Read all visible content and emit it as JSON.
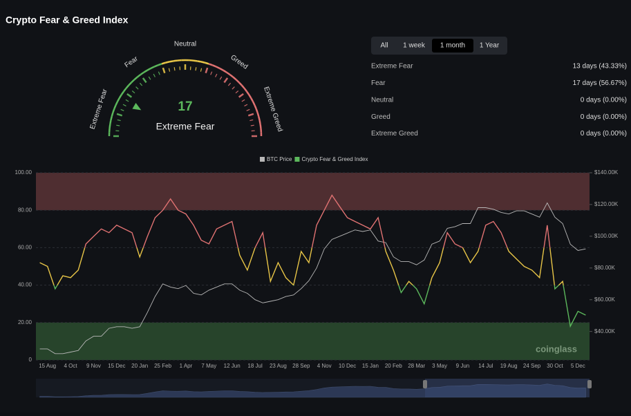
{
  "title": "Crypto Fear & Greed Index",
  "gauge": {
    "value": 17,
    "label": "Extreme Fear",
    "zones": [
      "Extreme Fear",
      "Fear",
      "Neutral",
      "Greed",
      "Extreme Greed"
    ]
  },
  "tabs": [
    "All",
    "1 week",
    "1 month",
    "1 Year"
  ],
  "active_tab": 2,
  "stats": [
    [
      "Extreme Fear",
      "13 days (43.33%)"
    ],
    [
      "Fear",
      "17 days (56.67%)"
    ],
    [
      "Neutral",
      "0 days (0.00%)"
    ],
    [
      "Greed",
      "0 days (0.00%)"
    ],
    [
      "Extreme Greed",
      "0 days (0.00%)"
    ]
  ],
  "watermark": "coinglass",
  "chart_data": {
    "type": "line",
    "categories": [
      null,
      "15 Aug",
      null,
      null,
      "4 Oct",
      null,
      null,
      "9 Nov",
      null,
      null,
      "15 Dec",
      null,
      null,
      "20 Jan",
      null,
      null,
      "25 Feb",
      null,
      null,
      "1 Apr",
      null,
      null,
      "7 May",
      null,
      null,
      "12 Jun",
      null,
      null,
      "18 Jul",
      null,
      null,
      "23 Aug",
      null,
      null,
      "28 Sep",
      null,
      null,
      "4 Nov",
      null,
      null,
      "10 Dec",
      null,
      null,
      "15 Jan",
      null,
      null,
      "20 Feb",
      null,
      null,
      "28 Mar",
      null,
      null,
      "3 May",
      null,
      null,
      "9 Jun",
      null,
      null,
      "14 Jul",
      null,
      null,
      "19 Aug",
      null,
      null,
      "24 Sep",
      null,
      null,
      "30 Oct",
      null,
      null,
      "5 Dec",
      null
    ],
    "series": [
      {
        "name": "BTC Price",
        "color": "#b8b8b8",
        "axis": "y2",
        "values": [
          29000,
          29000,
          26000,
          26000,
          27000,
          28000,
          34000,
          37000,
          37000,
          42000,
          43000,
          43000,
          42000,
          43000,
          52000,
          62000,
          70000,
          68000,
          67000,
          69000,
          64000,
          63000,
          66000,
          68000,
          70000,
          70000,
          66000,
          64000,
          60000,
          58000,
          59000,
          60000,
          62000,
          63000,
          67000,
          72000,
          80000,
          92000,
          98000,
          100000,
          102000,
          104000,
          103000,
          104000,
          97000,
          96000,
          87000,
          84000,
          84000,
          82000,
          85000,
          95000,
          97000,
          105000,
          106000,
          108000,
          108000,
          118000,
          118000,
          117000,
          115000,
          114000,
          116000,
          116000,
          114000,
          112000,
          121000,
          112000,
          108000,
          95000,
          91000,
          92000
        ]
      },
      {
        "name": "Crypto Fear & Greed Index",
        "color": "#5cb85c",
        "values": [
          52,
          50,
          38,
          45,
          44,
          48,
          62,
          66,
          70,
          68,
          72,
          70,
          68,
          55,
          66,
          76,
          80,
          86,
          80,
          78,
          72,
          64,
          62,
          70,
          72,
          74,
          56,
          48,
          60,
          68,
          42,
          52,
          44,
          40,
          58,
          52,
          72,
          80,
          88,
          82,
          76,
          74,
          72,
          70,
          76,
          58,
          48,
          36,
          42,
          38,
          30,
          44,
          52,
          68,
          62,
          60,
          52,
          58,
          72,
          74,
          68,
          58,
          54,
          50,
          48,
          44,
          72,
          38,
          42,
          18,
          26,
          24
        ],
        "zones": [
          {
            "from": 0,
            "to": 40,
            "color": "#5cb85c"
          },
          {
            "from": 40,
            "to": 60,
            "color": "#e8c547"
          },
          {
            "from": 60,
            "to": 100,
            "color": "#e07272"
          }
        ]
      }
    ],
    "ylim": [
      0,
      100
    ],
    "yticks": [
      0,
      {
        "value": 20,
        "label": "20.00"
      },
      {
        "value": 40,
        "label": "40.00"
      },
      {
        "value": 60,
        "label": "60.00"
      },
      {
        "value": 80,
        "label": "80.00"
      },
      {
        "value": 100,
        "label": "100.00"
      }
    ],
    "y2lim": [
      22000,
      140000
    ],
    "y2ticks": [
      {
        "value": 40000,
        "label": "$40.00K"
      },
      {
        "value": 60000,
        "label": "$60.00K"
      },
      {
        "value": 80000,
        "label": "$80.00K"
      },
      {
        "value": 100000,
        "label": "$100.00K"
      },
      {
        "value": 120000,
        "label": "$120.00K"
      },
      {
        "value": 140000,
        "label": "$140.00K"
      }
    ],
    "bands": [
      {
        "from": 80,
        "to": 100,
        "color": "#e07272"
      },
      {
        "from": 0,
        "to": 20,
        "color": "#5cb85c"
      }
    ],
    "grid": true,
    "legend": "top"
  }
}
